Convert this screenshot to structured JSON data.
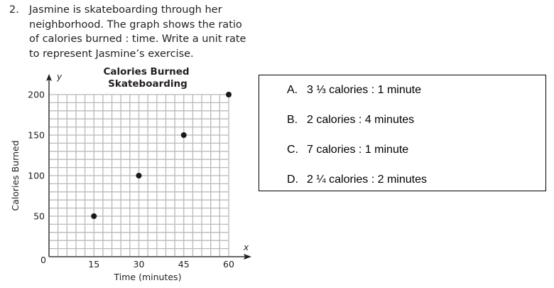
{
  "question": {
    "number": "2.",
    "lines": [
      "Jasmine is skateboarding through her",
      "neighborhood. The graph shows the ratio",
      "of calories burned : time. Write a unit rate",
      "to represent Jasmine’s exercise."
    ]
  },
  "chart_data": {
    "type": "scatter",
    "title": [
      "Calories Burned",
      "Skateboarding"
    ],
    "xlabel": "Time (minutes)",
    "ylabel": "Calories Burned",
    "x_axis_letter": "x",
    "y_axis_letter": "y",
    "xlim": [
      0,
      60
    ],
    "ylim": [
      0,
      200
    ],
    "x_grid_step": 3,
    "y_grid_step": 10,
    "grid": true,
    "x_ticks": [
      15,
      30,
      45,
      60
    ],
    "y_ticks": [
      50,
      100,
      150,
      200
    ],
    "origin_label": "0",
    "points": [
      {
        "x": 15,
        "y": 50
      },
      {
        "x": 30,
        "y": 100
      },
      {
        "x": 45,
        "y": 150
      },
      {
        "x": 60,
        "y": 200
      }
    ],
    "colors": {
      "grid": "#b9b9b9",
      "axis": "#555555",
      "point": "#1a1a1a"
    }
  },
  "answers": [
    {
      "letter": "A.",
      "text": "3 ⅓ calories : 1 minute"
    },
    {
      "letter": "B.",
      "text": "2 calories : 4 minutes"
    },
    {
      "letter": "C.",
      "text": "7 calories : 1 minute"
    },
    {
      "letter": "D.",
      "text": "2 ¼ calories : 2 minutes"
    }
  ]
}
